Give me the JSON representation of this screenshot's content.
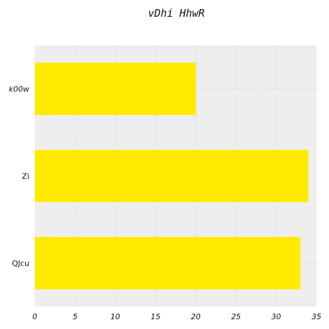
{
  "chart_data": {
    "type": "bar",
    "orientation": "horizontal",
    "title": "vDhi HhwR",
    "xlabel": "",
    "ylabel": "",
    "categories": [
      "k00w",
      "Zi",
      "QJcu"
    ],
    "values": [
      20,
      34,
      33
    ],
    "xlim": [
      0,
      35
    ],
    "xticks": [
      0,
      5,
      10,
      15,
      20,
      25,
      30,
      35
    ],
    "grid": true,
    "colors": {
      "bar": "#ffea00",
      "plot_bg": "#eeeeee",
      "grid": "#d9d9d9"
    }
  }
}
